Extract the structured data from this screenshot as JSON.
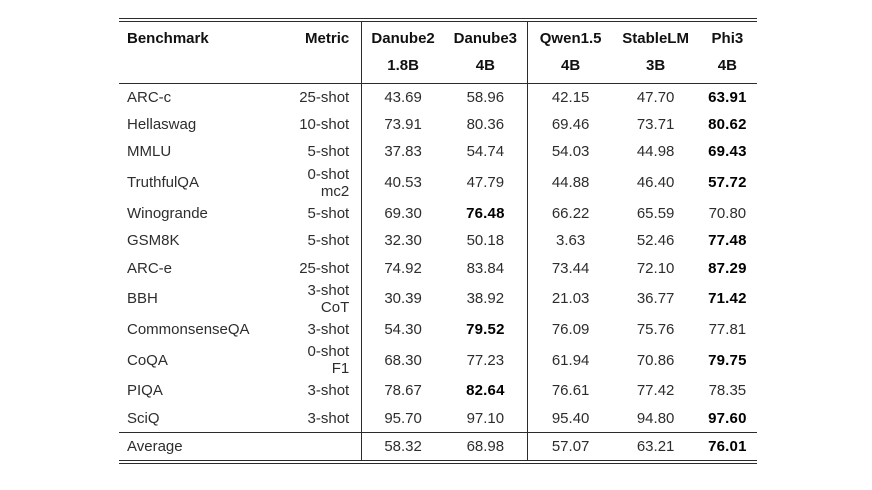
{
  "table": {
    "col_headers": {
      "benchmark": "Benchmark",
      "metric": "Metric",
      "models": [
        {
          "name": "Danube2",
          "size": "1.8B"
        },
        {
          "name": "Danube3",
          "size": "4B"
        },
        {
          "name": "Qwen1.5",
          "size": "4B"
        },
        {
          "name": "StableLM",
          "size": "3B"
        },
        {
          "name": "Phi3",
          "size": "4B"
        }
      ]
    },
    "rows": [
      {
        "benchmark": "ARC-c",
        "metric": "25-shot",
        "values": [
          "43.69",
          "58.96",
          "42.15",
          "47.70",
          "63.91"
        ],
        "bold": [
          4
        ]
      },
      {
        "benchmark": "Hellaswag",
        "metric": "10-shot",
        "values": [
          "73.91",
          "80.36",
          "69.46",
          "73.71",
          "80.62"
        ],
        "bold": [
          4
        ]
      },
      {
        "benchmark": "MMLU",
        "metric": "5-shot",
        "values": [
          "37.83",
          "54.74",
          "54.03",
          "44.98",
          "69.43"
        ],
        "bold": [
          4
        ]
      },
      {
        "benchmark": "TruthfulQA",
        "metric": "0-shot mc2",
        "values": [
          "40.53",
          "47.79",
          "44.88",
          "46.40",
          "57.72"
        ],
        "bold": [
          4
        ]
      },
      {
        "benchmark": "Winogrande",
        "metric": "5-shot",
        "values": [
          "69.30",
          "76.48",
          "66.22",
          "65.59",
          "70.80"
        ],
        "bold": [
          1
        ]
      },
      {
        "benchmark": "GSM8K",
        "metric": "5-shot",
        "values": [
          "32.30",
          "50.18",
          "3.63",
          "52.46",
          "77.48"
        ],
        "bold": [
          4
        ]
      },
      {
        "benchmark": "ARC-e",
        "metric": "25-shot",
        "values": [
          "74.92",
          "83.84",
          "73.44",
          "72.10",
          "87.29"
        ],
        "bold": [
          4
        ]
      },
      {
        "benchmark": "BBH",
        "metric": "3-shot CoT",
        "values": [
          "30.39",
          "38.92",
          "21.03",
          "36.77",
          "71.42"
        ],
        "bold": [
          4
        ]
      },
      {
        "benchmark": "CommonsenseQA",
        "metric": "3-shot",
        "values": [
          "54.30",
          "79.52",
          "76.09",
          "75.76",
          "77.81"
        ],
        "bold": [
          1
        ]
      },
      {
        "benchmark": "CoQA",
        "metric": "0-shot F1",
        "values": [
          "68.30",
          "77.23",
          "61.94",
          "70.86",
          "79.75"
        ],
        "bold": [
          4
        ]
      },
      {
        "benchmark": "PIQA",
        "metric": "3-shot",
        "values": [
          "78.67",
          "82.64",
          "76.61",
          "77.42",
          "78.35"
        ],
        "bold": [
          1
        ]
      },
      {
        "benchmark": "SciQ",
        "metric": "3-shot",
        "values": [
          "95.70",
          "97.10",
          "95.40",
          "94.80",
          "97.60"
        ],
        "bold": [
          4
        ]
      }
    ],
    "average": {
      "label": "Average",
      "metric": "",
      "values": [
        "58.32",
        "68.98",
        "57.07",
        "63.21",
        "76.01"
      ],
      "bold": [
        4
      ]
    }
  },
  "colors": {
    "rule": "#2b2b2b",
    "text": "#2d2d2d",
    "bold_text": "#000000",
    "background": "#ffffff"
  }
}
